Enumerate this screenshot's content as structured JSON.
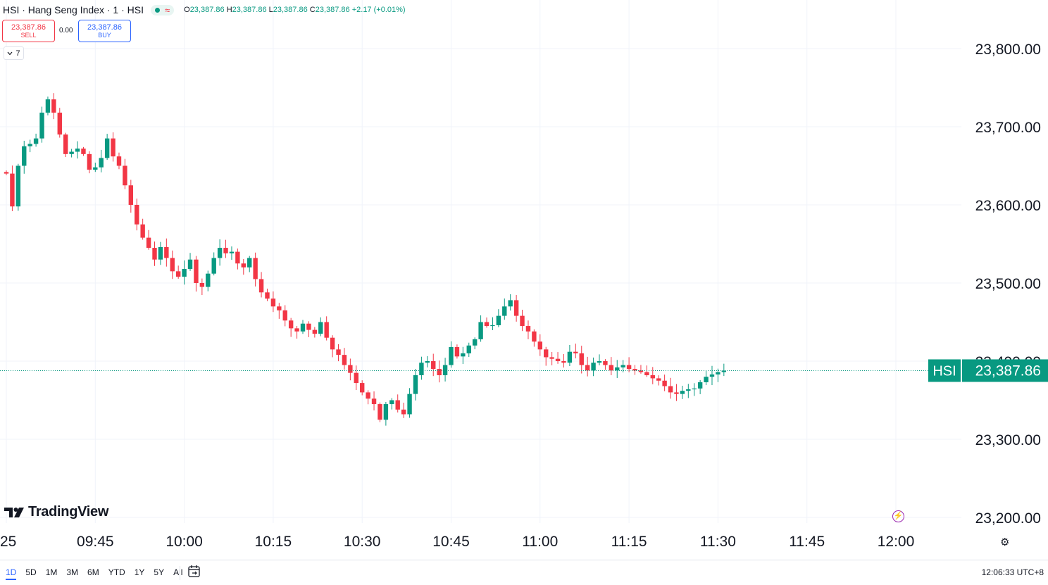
{
  "header": {
    "title": "HSI · Hang Seng Index · 1 · HSI",
    "approx_symbol": "≈",
    "ohlc": {
      "o_label": "O",
      "o": "23,387.86",
      "h_label": "H",
      "h": "23,387.86",
      "l_label": "L",
      "l": "23,387.86",
      "c_label": "C",
      "c": "23,387.86",
      "change": "+2.17 (+0.01%)"
    }
  },
  "trade": {
    "sell_price": "23,387.86",
    "sell_label": "SELL",
    "spread": "0.00",
    "buy_price": "23,387.86",
    "buy_label": "BUY"
  },
  "indicators_toggle": {
    "count": "7"
  },
  "logo": {
    "name": "TradingView"
  },
  "price_tag": {
    "symbol": "HSI",
    "price": "23,387.86"
  },
  "bottom_bar": {
    "ranges": [
      "1D",
      "5D",
      "1M",
      "3M",
      "6M",
      "YTD",
      "1Y",
      "5Y",
      "All"
    ],
    "active_range": "1D",
    "clock": "12:06:33 UTC+8"
  },
  "colors": {
    "up": "#089981",
    "down": "#f23645",
    "accent": "#2962ff"
  },
  "chart_data": {
    "type": "candlestick",
    "interval_minutes": 1,
    "session_start": "09:30",
    "last_price": 23387.86,
    "grid": true,
    "ylim": [
      23170,
      23835
    ],
    "xlim": [
      "09:30",
      "12:06"
    ],
    "y_ticks": [
      {
        "value": 23800,
        "label": "23,800.00"
      },
      {
        "value": 23700,
        "label": "23,700.00"
      },
      {
        "value": 23600,
        "label": "23,600.00"
      },
      {
        "value": 23500,
        "label": "23,500.00"
      },
      {
        "value": 23400,
        "label": "23,400.00"
      },
      {
        "value": 23300,
        "label": "23,300.00"
      },
      {
        "value": 23200,
        "label": "23,200.00"
      }
    ],
    "x_ticks": [
      {
        "time": "09:30",
        "label": "25"
      },
      {
        "time": "09:45",
        "label": "09:45"
      },
      {
        "time": "10:00",
        "label": "10:00"
      },
      {
        "time": "10:15",
        "label": "10:15"
      },
      {
        "time": "10:30",
        "label": "10:30"
      },
      {
        "time": "10:45",
        "label": "10:45"
      },
      {
        "time": "11:00",
        "label": "11:00"
      },
      {
        "time": "11:15",
        "label": "11:15"
      },
      {
        "time": "11:30",
        "label": "11:30"
      },
      {
        "time": "11:45",
        "label": "11:45"
      },
      {
        "time": "12:00",
        "label": "12:00"
      }
    ],
    "close_path": [
      23640,
      23598,
      23650,
      23675,
      23678,
      23685,
      23718,
      23735,
      23718,
      23690,
      23665,
      23668,
      23672,
      23665,
      23645,
      23648,
      23660,
      23685,
      23662,
      23650,
      23625,
      23600,
      23575,
      23558,
      23545,
      23530,
      23546,
      23532,
      23515,
      23508,
      23518,
      23530,
      23500,
      23495,
      23512,
      23532,
      23545,
      23538,
      23540,
      23525,
      23520,
      23532,
      23505,
      23488,
      23480,
      23470,
      23465,
      23452,
      23442,
      23438,
      23448,
      23440,
      23435,
      23450,
      23430,
      23415,
      23408,
      23395,
      23385,
      23372,
      23360,
      23352,
      23345,
      23325,
      23345,
      23350,
      23338,
      23332,
      23358,
      23382,
      23398,
      23400,
      23390,
      23382,
      23395,
      23418,
      23406,
      23410,
      23420,
      23428,
      23450,
      23445,
      23446,
      23458,
      23470,
      23478,
      23458,
      23445,
      23438,
      23425,
      23415,
      23405,
      23403,
      23400,
      23398,
      23412,
      23410,
      23395,
      23388,
      23398,
      23400,
      23395,
      23388,
      23392,
      23395,
      23390,
      23388,
      23386,
      23382,
      23378,
      23375,
      23368,
      23360,
      23358,
      23362,
      23364,
      23365,
      23373,
      23380,
      23383,
      23386,
      23387.86
    ]
  }
}
